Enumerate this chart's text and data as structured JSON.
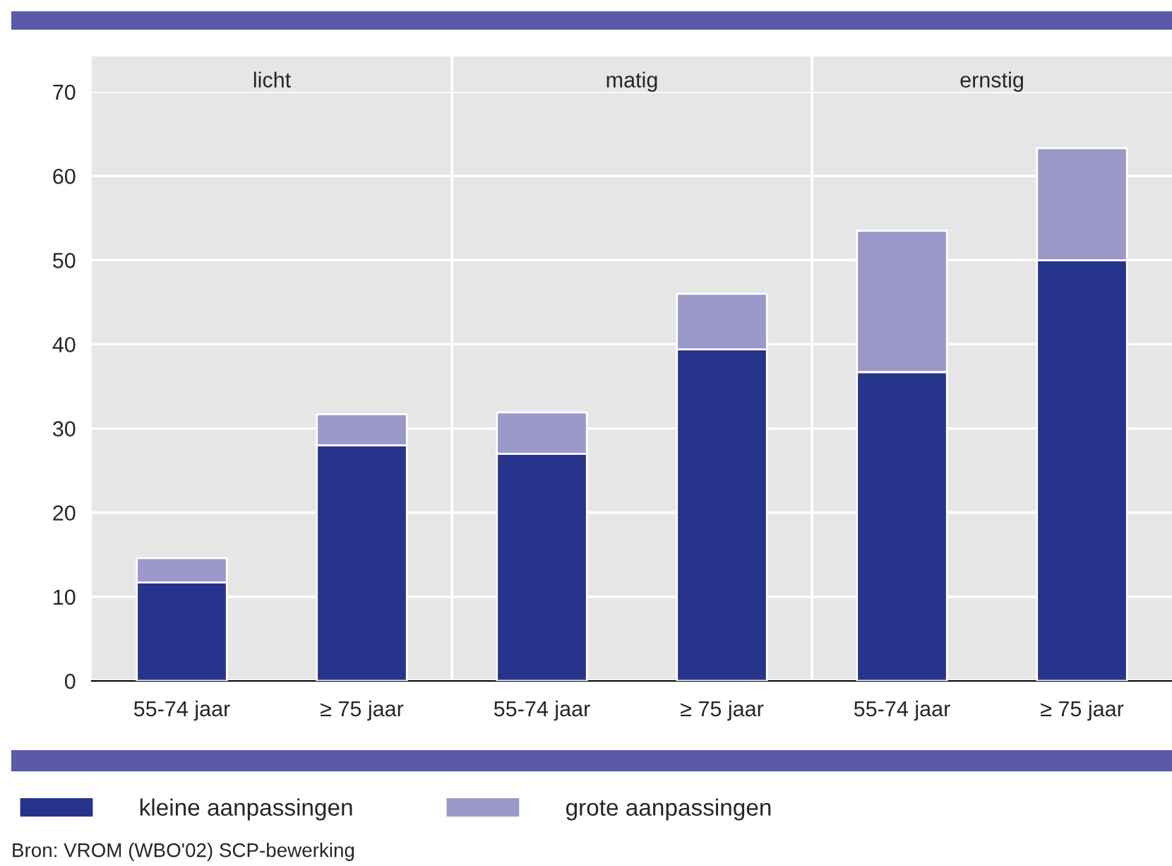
{
  "chart_data": {
    "type": "bar",
    "stacked": true,
    "categories": [
      "55-74 jaar",
      "≥ 75 jaar",
      "55-74 jaar",
      "≥ 75 jaar",
      "55-74 jaar",
      "≥ 75 jaar"
    ],
    "series": [
      {
        "name": "kleine aanpassingen",
        "color": "#27348b",
        "values": [
          11.7,
          28.0,
          27.0,
          39.4,
          36.7,
          50.0
        ]
      },
      {
        "name": "grote aanpassingen",
        "color": "#9a99c9",
        "values": [
          2.9,
          3.7,
          4.9,
          6.6,
          16.8,
          13.3
        ]
      }
    ],
    "ylim": [
      0,
      70
    ],
    "yticks": [
      0,
      10,
      20,
      30,
      40,
      50,
      60,
      70
    ],
    "grid": "y",
    "legend": "bottom",
    "annotations": [
      "licht",
      "matig",
      "ernstig",
      "Bron: VROM (WBO'02) SCP-bewerking"
    ]
  }
}
